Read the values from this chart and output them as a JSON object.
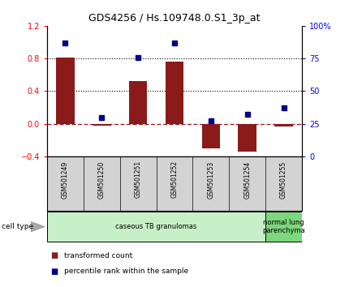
{
  "title": "GDS4256 / Hs.109748.0.S1_3p_at",
  "samples": [
    "GSM501249",
    "GSM501250",
    "GSM501251",
    "GSM501252",
    "GSM501253",
    "GSM501254",
    "GSM501255"
  ],
  "transformed_count": [
    0.81,
    -0.02,
    0.52,
    0.76,
    -0.3,
    -0.34,
    -0.03
  ],
  "percentile_rank": [
    87,
    30,
    76,
    87,
    27,
    32,
    37
  ],
  "bar_color": "#8B1A1A",
  "dot_color": "#00008B",
  "ylim_left": [
    -0.4,
    1.2
  ],
  "ylim_right": [
    0,
    100
  ],
  "yticks_left": [
    -0.4,
    0.0,
    0.4,
    0.8,
    1.2
  ],
  "yticks_right": [
    0,
    25,
    50,
    75,
    100
  ],
  "yticklabels_right": [
    "0",
    "25",
    "50",
    "75",
    "100%"
  ],
  "hline_dotted_values": [
    0.4,
    0.8
  ],
  "hline_dashed_value": 0.0,
  "cell_types": [
    {
      "label": "caseous TB granulomas",
      "samples": [
        0,
        1,
        2,
        3,
        4,
        5
      ],
      "color": "#c8f0c8"
    },
    {
      "label": "normal lung\nparenchyma",
      "samples": [
        6
      ],
      "color": "#7dd87d"
    }
  ],
  "legend_bar_label": "transformed count",
  "legend_dot_label": "percentile rank within the sample",
  "cell_type_label": "cell type",
  "bg_color": "#ffffff",
  "axis_bg": "#ffffff",
  "tick_label_area_color": "#d3d3d3"
}
